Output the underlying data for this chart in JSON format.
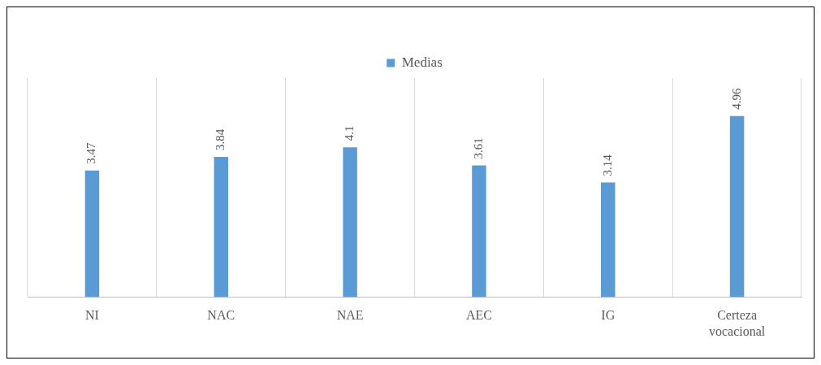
{
  "chart_data": {
    "type": "bar",
    "categories": [
      "NI",
      "NAC",
      "NAE",
      "AEC",
      "IG",
      "Certeza vocacional"
    ],
    "series": [
      {
        "name": "Medias",
        "color": "#5b9bd5",
        "values": [
          3.47,
          3.84,
          4.1,
          3.61,
          3.14,
          4.96
        ]
      }
    ],
    "data_labels": true,
    "legend": "top",
    "grid": "x"
  }
}
